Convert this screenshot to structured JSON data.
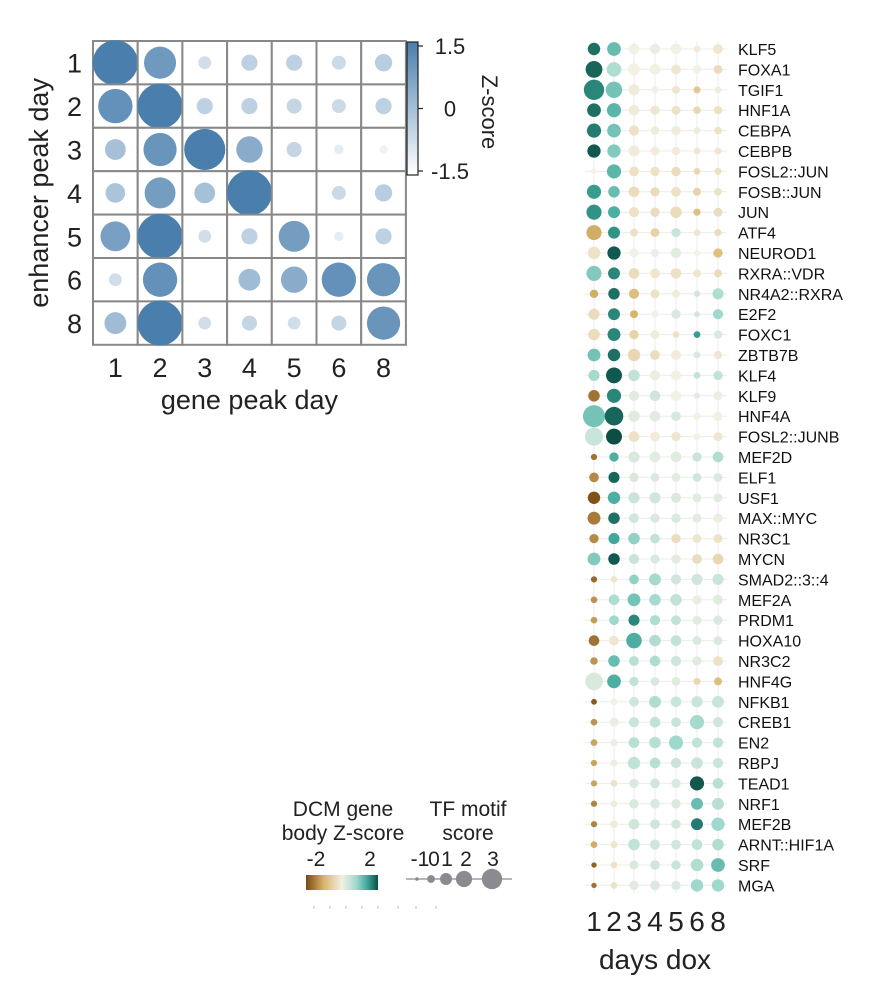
{
  "colors": {
    "heat_low": "#ffffff",
    "heat_high": "#4a7fad",
    "grid": "#888888",
    "brown_dark": "#7a4a10",
    "tan": "#d9b56b",
    "neutral": "#f3f0e4",
    "teal_light": "#9fd8cd",
    "teal_mid": "#3ea89a",
    "teal_dark": "#0b4e44",
    "motif_size": "#8a8a90"
  },
  "chart_data": [
    {
      "type": "heatmap",
      "xlabel": "gene peak day",
      "ylabel": "enhancer peak day",
      "x_categories": [
        "1",
        "2",
        "3",
        "4",
        "5",
        "6",
        "8"
      ],
      "y_categories": [
        "1",
        "2",
        "3",
        "4",
        "5",
        "6",
        "8"
      ],
      "size_and_color": "Z-score",
      "zlim": [
        -1.5,
        1.5
      ],
      "legend_title": "Z-score",
      "legend_ticks": [
        "1.5",
        "0",
        "-1.5"
      ],
      "values": [
        [
          2.0,
          0.8,
          -0.9,
          -0.6,
          -0.6,
          -0.8,
          -0.5
        ],
        [
          1.0,
          2.1,
          -0.6,
          -0.6,
          -0.7,
          -0.8,
          -0.6
        ],
        [
          -0.2,
          0.9,
          1.6,
          0.3,
          -0.7,
          -1.2,
          -1.3
        ],
        [
          -0.3,
          0.7,
          -0.2,
          2.0,
          -1.5,
          -0.8,
          -0.5
        ],
        [
          0.6,
          2.2,
          -0.9,
          -0.6,
          0.7,
          -1.2,
          -0.6
        ],
        [
          -0.9,
          1.0,
          null,
          -0.1,
          0.3,
          1.0,
          0.9
        ],
        [
          -0.1,
          2.1,
          -0.9,
          -0.7,
          -0.9,
          -0.7,
          0.9
        ]
      ]
    },
    {
      "type": "scatter",
      "xlabel": "days dox",
      "x_categories": [
        "1",
        "2",
        "3",
        "4",
        "5",
        "6",
        "8"
      ],
      "color_legend": {
        "title": "DCM gene body Z-score",
        "ticks": [
          "-2",
          "2"
        ]
      },
      "size_legend": {
        "title": "TF motif score",
        "ticks": [
          "-1",
          "0",
          "1",
          "2",
          "3"
        ]
      },
      "rows": [
        {
          "tf": "KLF5",
          "z": [
            2.2,
            1.4,
            0.0,
            0.1,
            0.0,
            -0.1,
            -0.2
          ],
          "m": [
            1.0,
            1.3,
            0.6,
            0.5,
            0.6,
            -0.3,
            0.4
          ]
        },
        {
          "tf": "FOXA1",
          "z": [
            2.3,
            0.8,
            0.0,
            0.0,
            -0.2,
            0.0,
            -0.4
          ],
          "m": [
            2.0,
            1.5,
            0.9,
            0.6,
            0.4,
            0.1,
            0.2
          ]
        },
        {
          "tf": "TGIF1",
          "z": [
            2.0,
            1.3,
            -0.1,
            0.0,
            -0.2,
            -0.8,
            -0.1
          ],
          "m": [
            2.8,
            1.9,
            0.7,
            -0.2,
            0.0,
            -0.2,
            -0.3
          ]
        },
        {
          "tf": "HNF1A",
          "z": [
            2.2,
            1.5,
            -0.1,
            -0.2,
            -0.3,
            -0.5,
            -0.3
          ],
          "m": [
            1.3,
            1.4,
            0.6,
            0.3,
            0.2,
            -0.1,
            0.1
          ]
        },
        {
          "tf": "CEBPA",
          "z": [
            2.1,
            1.3,
            -0.3,
            -0.1,
            -0.1,
            -0.1,
            -0.3
          ],
          "m": [
            1.4,
            1.3,
            0.5,
            0.1,
            0.3,
            -0.3,
            -0.1
          ]
        },
        {
          "tf": "CEBPB",
          "z": [
            2.4,
            1.2,
            -0.1,
            -0.1,
            -0.1,
            -0.2,
            -0.2
          ],
          "m": [
            1.2,
            1.2,
            0.7,
            0.2,
            0.1,
            -0.3,
            -0.2
          ]
        },
        {
          "tf": "FOSL2::JUN",
          "z": [
            0.0,
            1.5,
            -0.3,
            -0.3,
            -0.4,
            -0.5,
            -0.3
          ],
          "m": [
            -0.6,
            1.4,
            0.4,
            0.3,
            0.3,
            -0.3,
            -0.2
          ]
        },
        {
          "tf": "FOSB::JUN",
          "z": [
            1.8,
            1.4,
            -0.4,
            -0.4,
            -0.3,
            -0.6,
            -0.3
          ],
          "m": [
            1.4,
            0.8,
            0.6,
            0.3,
            0.4,
            0.0,
            -0.1
          ]
        },
        {
          "tf": "JUN",
          "z": [
            1.9,
            1.6,
            -0.3,
            -0.4,
            -0.4,
            -1.0,
            -0.4
          ],
          "m": [
            1.6,
            0.9,
            0.5,
            0.3,
            0.8,
            -0.2,
            0.2
          ]
        },
        {
          "tf": "ATF4",
          "z": [
            -1.3,
            1.9,
            -0.3,
            -0.6,
            0.5,
            -0.2,
            -0.4
          ],
          "m": [
            1.6,
            0.9,
            0.0,
            0.2,
            0.3,
            -0.3,
            -0.2
          ]
        },
        {
          "tf": "NEUROD1",
          "z": [
            -0.3,
            2.4,
            0.0,
            0.1,
            0.2,
            0.0,
            -1.0
          ],
          "m": [
            1.0,
            1.2,
            0.2,
            0.0,
            0.5,
            -0.4,
            0.3
          ]
        },
        {
          "tf": "RXRA::VDR",
          "z": [
            1.2,
            2.0,
            -0.4,
            -0.2,
            -0.3,
            -0.2,
            -0.4
          ],
          "m": [
            1.6,
            0.9,
            0.6,
            0.4,
            0.6,
            0.0,
            0.0
          ]
        },
        {
          "tf": "NR4A2::RXRA",
          "z": [
            -1.3,
            2.2,
            -1.0,
            -0.3,
            -0.1,
            0.4,
            0.8
          ],
          "m": [
            0.1,
            0.8,
            0.5,
            0.2,
            0.0,
            -0.4,
            0.7
          ]
        },
        {
          "tf": "E2F2",
          "z": [
            -0.4,
            2.0,
            -1.2,
            0.0,
            0.3,
            0.4,
            1.0
          ],
          "m": [
            0.7,
            0.9,
            0.0,
            -0.2,
            0.3,
            -0.5,
            0.5
          ]
        },
        {
          "tf": "FOXC1",
          "z": [
            -0.4,
            2.0,
            -0.6,
            -0.1,
            -0.3,
            1.8,
            0.3
          ],
          "m": [
            0.8,
            1.1,
            0.3,
            0.2,
            -0.3,
            -0.3,
            0.1
          ]
        },
        {
          "tf": "ZBTB7B",
          "z": [
            1.3,
            2.2,
            -0.5,
            -0.4,
            -0.1,
            0.3,
            -0.2
          ],
          "m": [
            1.1,
            1.0,
            1.0,
            0.4,
            0.4,
            -0.2,
            0.0
          ]
        },
        {
          "tf": "KLF4",
          "z": [
            0.9,
            2.4,
            0.6,
            0.1,
            0.0,
            0.6,
            0.6
          ],
          "m": [
            0.7,
            1.8,
            0.8,
            0.5,
            0.5,
            -0.3,
            0.3
          ]
        },
        {
          "tf": "KLF9",
          "z": [
            -2.0,
            2.0,
            0.2,
            0.4,
            0.0,
            0.2,
            0.1
          ],
          "m": [
            0.8,
            1.4,
            0.5,
            0.6,
            0.5,
            -0.4,
            0.2
          ]
        },
        {
          "tf": "HNF4A",
          "z": [
            1.3,
            2.3,
            0.2,
            0.2,
            0.3,
            0.0,
            0.0
          ],
          "m": [
            3.2,
            2.4,
            0.8,
            0.6,
            0.4,
            -0.2,
            0.3
          ]
        },
        {
          "tf": "FOSL2::JUNB",
          "z": [
            0.5,
            2.5,
            -0.3,
            -0.1,
            -0.2,
            0.0,
            -0.2
          ],
          "m": [
            2.3,
            1.8,
            0.6,
            0.4,
            0.3,
            -0.3,
            0.2
          ]
        },
        {
          "tf": "MEF2D",
          "z": [
            -2.0,
            1.6,
            0.3,
            0.2,
            0.2,
            0.5,
            0.8
          ],
          "m": [
            -0.4,
            0.3,
            0.7,
            0.6,
            0.6,
            0.3,
            0.6
          ]
        },
        {
          "tf": "ELF1",
          "z": [
            -1.7,
            2.3,
            0.3,
            0.3,
            0.2,
            0.4,
            0.3
          ],
          "m": [
            0.4,
            0.7,
            0.3,
            0.2,
            0.2,
            0.2,
            0.2
          ]
        },
        {
          "tf": "USF1",
          "z": [
            -2.4,
            1.6,
            0.5,
            0.4,
            0.3,
            0.2,
            0.2
          ],
          "m": [
            1.0,
            1.0,
            0.7,
            0.7,
            0.5,
            0.2,
            0.2
          ]
        },
        {
          "tf": "MAX::MYC",
          "z": [
            -1.9,
            2.2,
            0.4,
            0.3,
            0.3,
            0.2,
            0.1
          ],
          "m": [
            1.1,
            0.8,
            0.4,
            0.3,
            0.3,
            0.2,
            0.3
          ]
        },
        {
          "tf": "NR3C1",
          "z": [
            -1.7,
            1.7,
            1.1,
            0.6,
            -0.4,
            -0.2,
            -0.3
          ],
          "m": [
            0.3,
            0.7,
            0.8,
            0.4,
            0.3,
            0.2,
            0.2
          ]
        },
        {
          "tf": "MYCN",
          "z": [
            1.2,
            2.4,
            0.5,
            0.3,
            0.2,
            -0.4,
            -0.5
          ],
          "m": [
            1.1,
            0.8,
            0.5,
            0.3,
            0.3,
            0.4,
            0.6
          ]
        },
        {
          "tf": "SMAD2::3::4",
          "z": [
            -2.1,
            -0.2,
            1.1,
            0.9,
            0.4,
            0.4,
            0.5
          ],
          "m": [
            -0.4,
            -0.3,
            0.4,
            0.9,
            0.5,
            0.7,
            0.7
          ]
        },
        {
          "tf": "MEF2A",
          "z": [
            -1.6,
            0.8,
            1.3,
            0.9,
            0.6,
            0.1,
            0.2
          ],
          "m": [
            -0.3,
            0.6,
            1.1,
            0.8,
            0.8,
            0.3,
            0.4
          ]
        },
        {
          "tf": "PRDM1",
          "z": [
            -1.5,
            1.0,
            2.0,
            0.8,
            0.6,
            0.2,
            0.3
          ],
          "m": [
            -0.3,
            0.4,
            0.7,
            0.5,
            0.4,
            0.2,
            0.3
          ]
        },
        {
          "tf": "HOXA10",
          "z": [
            -2.0,
            -0.2,
            1.6,
            0.8,
            0.6,
            0.3,
            0.3
          ],
          "m": [
            0.6,
            0.4,
            1.7,
            0.8,
            0.6,
            0.2,
            0.2
          ]
        },
        {
          "tf": "NR3C2",
          "z": [
            -1.6,
            1.4,
            0.7,
            0.8,
            0.4,
            0.2,
            -0.3
          ],
          "m": [
            -0.1,
            0.8,
            0.4,
            0.6,
            0.5,
            0.3,
            0.4
          ]
        },
        {
          "tf": "HNF4G",
          "z": [
            0.3,
            1.6,
            0.6,
            0.3,
            0.2,
            -0.5,
            -1.0
          ],
          "m": [
            2.2,
            1.3,
            0.3,
            0.2,
            0.2,
            -0.2,
            0.0
          ]
        },
        {
          "tf": "NFKB1",
          "z": [
            -2.3,
            0.0,
            0.4,
            0.8,
            0.5,
            0.5,
            0.5
          ],
          "m": [
            -0.5,
            -0.3,
            0.4,
            0.9,
            0.6,
            0.7,
            0.9
          ]
        },
        {
          "tf": "CREB1",
          "z": [
            -1.6,
            0.1,
            0.5,
            0.6,
            0.5,
            0.9,
            0.4
          ],
          "m": [
            -0.3,
            0.2,
            0.5,
            0.6,
            0.4,
            1.4,
            0.5
          ]
        },
        {
          "tf": "EN2",
          "z": [
            -1.4,
            0.1,
            0.7,
            0.7,
            1.0,
            0.6,
            0.6
          ],
          "m": [
            -0.3,
            -0.2,
            0.6,
            0.8,
            1.4,
            0.5,
            0.5
          ]
        },
        {
          "tf": "RBPJ",
          "z": [
            -1.4,
            0.1,
            0.6,
            0.7,
            0.5,
            0.5,
            0.5
          ],
          "m": [
            -0.4,
            -0.2,
            1.0,
            0.6,
            0.5,
            0.8,
            0.5
          ]
        },
        {
          "tf": "TEAD1",
          "z": [
            -1.4,
            -0.3,
            0.3,
            0.4,
            0.3,
            2.4,
            0.7
          ],
          "m": [
            -0.4,
            -0.3,
            0.3,
            0.4,
            0.3,
            1.4,
            0.6
          ]
        },
        {
          "tf": "NRF1",
          "z": [
            -1.8,
            -0.1,
            0.3,
            0.3,
            0.3,
            1.4,
            0.7
          ],
          "m": [
            -0.4,
            -0.3,
            0.3,
            0.4,
            0.3,
            0.9,
            0.9
          ]
        },
        {
          "tf": "MEF2B",
          "z": [
            -1.8,
            -0.1,
            0.4,
            0.4,
            0.4,
            2.1,
            1.0
          ],
          "m": [
            -0.4,
            -0.1,
            0.6,
            0.4,
            0.3,
            0.9,
            1.2
          ]
        },
        {
          "tf": "ARNT::HIF1A",
          "z": [
            -1.3,
            -0.2,
            0.6,
            0.4,
            0.4,
            0.6,
            0.8
          ],
          "m": [
            -0.3,
            -0.2,
            0.8,
            0.5,
            0.4,
            0.6,
            0.8
          ]
        },
        {
          "tf": "SRF",
          "z": [
            -2.2,
            -0.3,
            0.3,
            0.4,
            0.5,
            0.8,
            1.4
          ],
          "m": [
            -0.6,
            -0.3,
            0.2,
            0.4,
            0.3,
            1.0,
            1.3
          ]
        },
        {
          "tf": "MGA",
          "z": [
            -2.0,
            -0.3,
            0.2,
            0.3,
            0.3,
            1.0,
            1.0
          ],
          "m": [
            -0.6,
            -0.3,
            0.3,
            0.4,
            0.3,
            1.0,
            1.0
          ]
        }
      ]
    }
  ]
}
